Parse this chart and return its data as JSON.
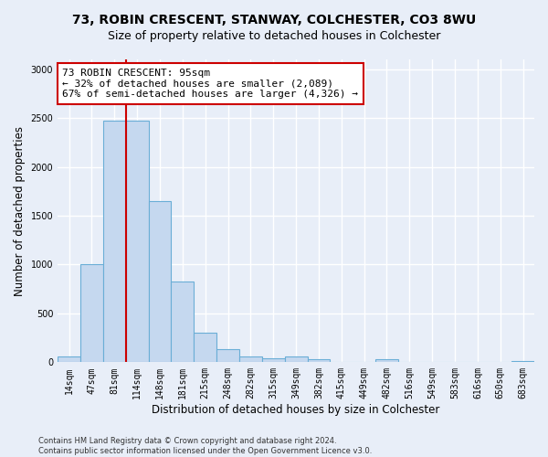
{
  "title_line1": "73, ROBIN CRESCENT, STANWAY, COLCHESTER, CO3 8WU",
  "title_line2": "Size of property relative to detached houses in Colchester",
  "xlabel": "Distribution of detached houses by size in Colchester",
  "ylabel": "Number of detached properties",
  "footnote": "Contains HM Land Registry data © Crown copyright and database right 2024.\nContains public sector information licensed under the Open Government Licence v3.0.",
  "bar_labels": [
    "14sqm",
    "47sqm",
    "81sqm",
    "114sqm",
    "148sqm",
    "181sqm",
    "215sqm",
    "248sqm",
    "282sqm",
    "315sqm",
    "349sqm",
    "382sqm",
    "415sqm",
    "449sqm",
    "482sqm",
    "516sqm",
    "549sqm",
    "583sqm",
    "616sqm",
    "650sqm",
    "683sqm"
  ],
  "bar_values": [
    55,
    1000,
    2470,
    2470,
    1650,
    830,
    300,
    130,
    55,
    40,
    55,
    30,
    0,
    0,
    30,
    0,
    0,
    0,
    0,
    0,
    10
  ],
  "bar_color": "#c5d8ef",
  "bar_edge_color": "#6aaed6",
  "red_line_x": 2.5,
  "annotation_text": "73 ROBIN CRESCENT: 95sqm\n← 32% of detached houses are smaller (2,089)\n67% of semi-detached houses are larger (4,326) →",
  "annotation_box_color": "#ffffff",
  "annotation_box_edge": "#cc0000",
  "ylim": [
    0,
    3100
  ],
  "yticks": [
    0,
    500,
    1000,
    1500,
    2000,
    2500,
    3000
  ],
  "background_color": "#e8eef8",
  "grid_color": "#ffffff",
  "title_fontsize": 10,
  "subtitle_fontsize": 9,
  "axis_label_fontsize": 8.5,
  "tick_fontsize": 7,
  "annot_fontsize": 8,
  "footnote_fontsize": 6
}
